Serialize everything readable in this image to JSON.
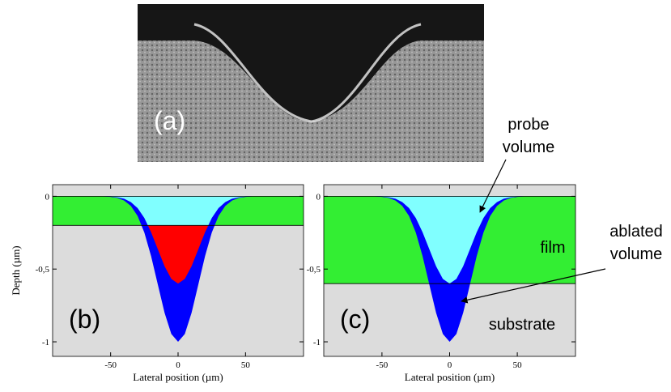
{
  "image_panel": {
    "label": "(a)"
  },
  "chart_data": [
    {
      "type": "area",
      "panel_label": "(b)",
      "ylabel": "Depth (µm)",
      "xlabel": "Lateral position (µm)",
      "x": [
        -90,
        -60,
        -55,
        -50,
        -45,
        -40,
        -35,
        -30,
        -25,
        -20,
        -15,
        -10,
        -5,
        0,
        5,
        10,
        15,
        20,
        25,
        30,
        35,
        40,
        45,
        50,
        55,
        60,
        90
      ],
      "series": [
        {
          "color": "#0000ff",
          "values": [
            0,
            0,
            -0.001,
            -0.004,
            -0.011,
            -0.029,
            -0.066,
            -0.135,
            -0.249,
            -0.411,
            -0.607,
            -0.801,
            -0.946,
            -1,
            -0.946,
            -0.801,
            -0.607,
            -0.411,
            -0.249,
            -0.135,
            -0.066,
            -0.029,
            -0.011,
            -0.004,
            -0.001,
            0,
            0
          ]
        },
        {
          "color": "#80ffff",
          "color_below_film": "#ff0000",
          "values": [
            0,
            0,
            -0.001,
            -0.002,
            -0.007,
            -0.017,
            -0.04,
            -0.081,
            -0.149,
            -0.247,
            -0.364,
            -0.481,
            -0.568,
            -0.6,
            -0.568,
            -0.481,
            -0.364,
            -0.247,
            -0.149,
            -0.081,
            -0.04,
            -0.017,
            -0.007,
            -0.002,
            -0.001,
            0,
            0
          ]
        }
      ],
      "film": {
        "depth": -0.2,
        "color": "#33ee33"
      },
      "substrate_color": "#dcdcdc",
      "xlim": [
        -93,
        93
      ],
      "ylim": [
        -1.1,
        0.08
      ],
      "xticks": [
        -50,
        0,
        50
      ],
      "yticks": [
        0,
        {
          "value": -0.5,
          "label": "-0,5"
        },
        -1
      ]
    },
    {
      "type": "area",
      "panel_label": "(c)",
      "xlabel": "Lateral position (µm)",
      "x": [
        -90,
        -60,
        -55,
        -50,
        -45,
        -40,
        -35,
        -30,
        -25,
        -20,
        -15,
        -10,
        -5,
        0,
        5,
        10,
        15,
        20,
        25,
        30,
        35,
        40,
        45,
        50,
        55,
        60,
        90
      ],
      "series": [
        {
          "color": "#0000ff",
          "values": [
            0,
            0,
            -0.001,
            -0.004,
            -0.011,
            -0.029,
            -0.066,
            -0.135,
            -0.249,
            -0.411,
            -0.607,
            -0.801,
            -0.946,
            -1,
            -0.946,
            -0.801,
            -0.607,
            -0.411,
            -0.249,
            -0.135,
            -0.066,
            -0.029,
            -0.011,
            -0.004,
            -0.001,
            0,
            0
          ]
        },
        {
          "color": "#80ffff",
          "color_below_film": "#ff0000",
          "values": [
            0,
            0,
            -0.001,
            -0.002,
            -0.007,
            -0.017,
            -0.04,
            -0.081,
            -0.149,
            -0.247,
            -0.364,
            -0.481,
            -0.568,
            -0.6,
            -0.568,
            -0.481,
            -0.364,
            -0.247,
            -0.149,
            -0.081,
            -0.04,
            -0.017,
            -0.007,
            -0.002,
            -0.001,
            0,
            0
          ]
        }
      ],
      "film": {
        "depth": -0.6,
        "color": "#33ee33"
      },
      "substrate_color": "#dcdcdc",
      "xlim": [
        -93,
        93
      ],
      "ylim": [
        -1.1,
        0.08
      ],
      "xticks": [
        -50,
        0,
        50
      ],
      "yticks": [
        0,
        {
          "value": -0.5,
          "label": "-0,5"
        },
        -1
      ],
      "annotations": {
        "probe": [
          "probe",
          "volume"
        ],
        "film": "film",
        "ablated": [
          "ablated",
          "volume"
        ],
        "substrate": "substrate"
      }
    }
  ]
}
